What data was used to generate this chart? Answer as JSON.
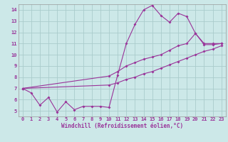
{
  "xlabel": "Windchill (Refroidissement éolien,°C)",
  "bg_color": "#cce8e8",
  "grid_color": "#aacccc",
  "line_color": "#993399",
  "xlim": [
    -0.5,
    23.5
  ],
  "ylim": [
    4.5,
    14.5
  ],
  "xticks": [
    0,
    1,
    2,
    3,
    4,
    5,
    6,
    7,
    8,
    9,
    10,
    11,
    12,
    13,
    14,
    15,
    16,
    17,
    18,
    19,
    20,
    21,
    22,
    23
  ],
  "yticks": [
    5,
    6,
    7,
    8,
    9,
    10,
    11,
    12,
    13,
    14
  ],
  "line1_x": [
    0,
    1,
    2,
    3,
    4,
    5,
    6,
    7,
    8,
    9,
    10,
    11,
    12,
    13,
    14,
    15,
    16,
    17,
    18,
    19,
    20,
    21,
    22,
    23
  ],
  "line1_y": [
    7.0,
    6.6,
    5.5,
    6.2,
    4.9,
    5.8,
    5.1,
    5.4,
    5.4,
    5.4,
    5.3,
    8.2,
    11.0,
    12.7,
    14.0,
    14.4,
    13.5,
    12.9,
    13.7,
    13.4,
    11.9,
    11.0,
    11.0,
    11.0
  ],
  "line2_x": [
    0,
    10,
    11,
    12,
    13,
    14,
    15,
    16,
    17,
    18,
    19,
    20,
    21,
    22,
    23
  ],
  "line2_y": [
    7.0,
    8.1,
    8.5,
    9.0,
    9.3,
    9.6,
    9.8,
    10.0,
    10.4,
    10.8,
    11.0,
    11.9,
    10.9,
    10.9,
    11.0
  ],
  "line3_x": [
    0,
    10,
    11,
    12,
    13,
    14,
    15,
    16,
    17,
    18,
    19,
    20,
    21,
    22,
    23
  ],
  "line3_y": [
    7.0,
    7.3,
    7.5,
    7.8,
    8.0,
    8.3,
    8.5,
    8.8,
    9.1,
    9.4,
    9.7,
    10.0,
    10.3,
    10.5,
    10.8
  ]
}
